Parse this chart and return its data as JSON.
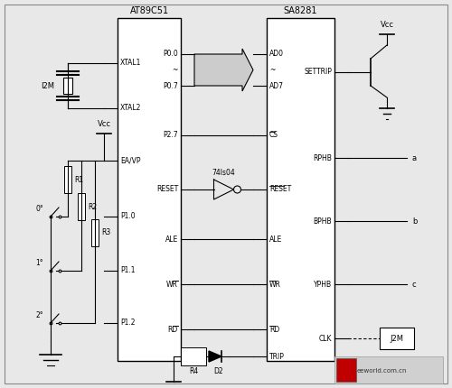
{
  "bg_color": "#e8e8e8",
  "line_color": "#000000",
  "box_color": "#ffffff",
  "text_color": "#000000",
  "mcu_label": "AT89C51",
  "sa_label": "SA8281",
  "watermark_text": "eeworld.com.cn",
  "fig_w": 5.0,
  "fig_h": 4.3,
  "dpi": 100
}
